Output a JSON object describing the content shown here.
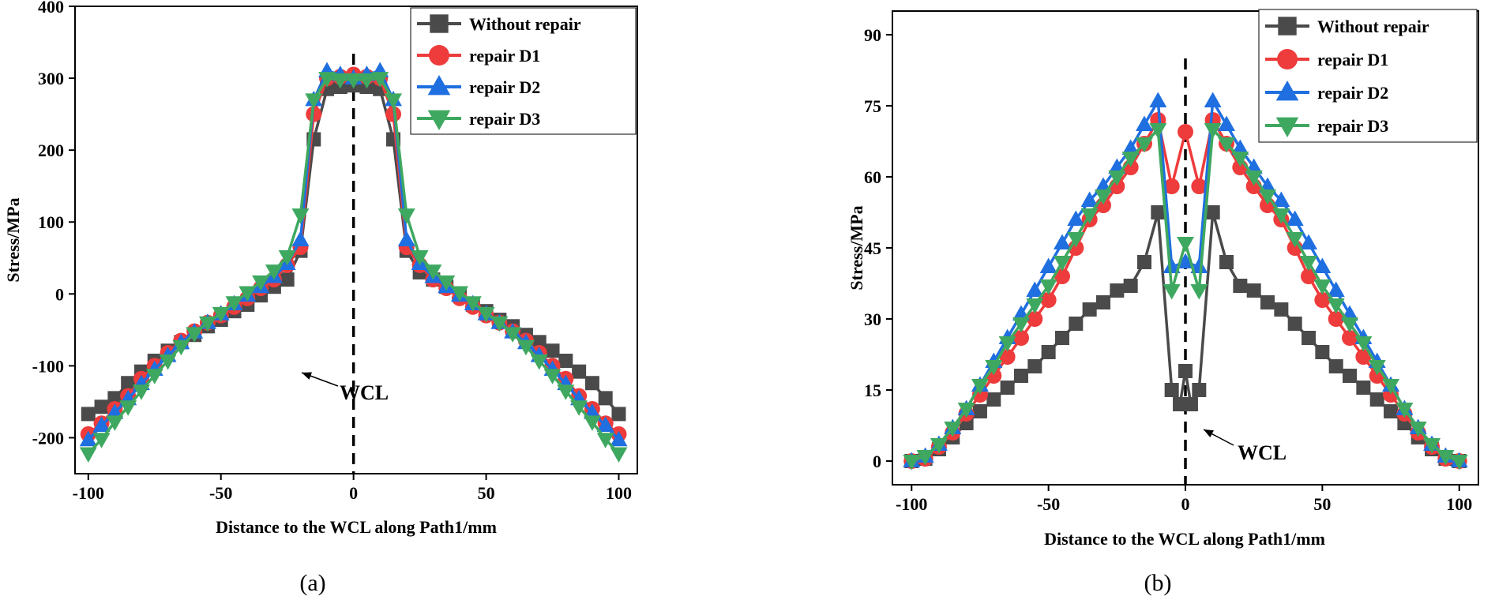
{
  "colors": {
    "without_repair": "#4a4a4a",
    "repair_d1": "#ee3b3b",
    "repair_d2": "#1f6fe0",
    "repair_d3": "#3fa860"
  },
  "chart_data": [
    {
      "type": "line",
      "panel_label": "(a)",
      "xlabel": "Distance to the WCL along Path1/mm",
      "ylabel": "Stress/MPa",
      "xlim": [
        -105,
        107
      ],
      "ylim": [
        -250,
        400
      ],
      "xticks": [
        -100,
        -50,
        0,
        50,
        100
      ],
      "yticks": [
        -200,
        -100,
        0,
        100,
        200,
        300,
        400
      ],
      "grid": false,
      "legend_position": "top-right",
      "annotation": {
        "text": "WCL",
        "x": 0,
        "y": -97
      },
      "series": [
        {
          "name": "Without repair",
          "marker": "square",
          "color_key": "without_repair",
          "x": [
            -100,
            -95,
            -90,
            -85,
            -80,
            -75,
            -70,
            -65,
            -60,
            -55,
            -50,
            -45,
            -40,
            -35,
            -30,
            -25,
            -20,
            -15,
            -10,
            -5,
            0,
            5,
            10,
            15,
            20,
            25,
            30,
            35,
            40,
            45,
            50,
            55,
            60,
            65,
            70,
            75,
            80,
            85,
            90,
            95,
            100
          ],
          "y": [
            -167,
            -157,
            -145,
            -124,
            -108,
            -93,
            -79,
            -67,
            -57,
            -45,
            -36,
            -24,
            -15,
            -2,
            10,
            20,
            60,
            215,
            285,
            288,
            290,
            288,
            285,
            215,
            60,
            30,
            20,
            10,
            -2,
            -15,
            -24,
            -36,
            -45,
            -57,
            -67,
            -79,
            -93,
            -108,
            -124,
            -145,
            -167
          ]
        },
        {
          "name": "repair D1",
          "marker": "circle",
          "color_key": "repair_d1",
          "x": [
            -100,
            -95,
            -90,
            -85,
            -80,
            -75,
            -70,
            -65,
            -60,
            -55,
            -50,
            -45,
            -40,
            -35,
            -30,
            -25,
            -20,
            -15,
            -10,
            -5,
            0,
            5,
            10,
            15,
            20,
            25,
            30,
            35,
            40,
            45,
            50,
            55,
            60,
            65,
            70,
            75,
            80,
            85,
            90,
            95,
            100
          ],
          "y": [
            -195,
            -180,
            -160,
            -142,
            -118,
            -100,
            -82,
            -65,
            -52,
            -40,
            -30,
            -18,
            -6,
            8,
            20,
            40,
            65,
            250,
            300,
            302,
            305,
            302,
            300,
            250,
            65,
            40,
            20,
            8,
            -6,
            -18,
            -30,
            -40,
            -52,
            -65,
            -82,
            -100,
            -118,
            -142,
            -160,
            -180,
            -195
          ]
        },
        {
          "name": "repair D2",
          "marker": "triangle-up",
          "color_key": "repair_d2",
          "x": [
            -100,
            -95,
            -90,
            -85,
            -80,
            -75,
            -70,
            -65,
            -60,
            -55,
            -50,
            -45,
            -40,
            -35,
            -30,
            -25,
            -20,
            -15,
            -10,
            -5,
            0,
            5,
            10,
            15,
            20,
            25,
            30,
            35,
            40,
            45,
            50,
            55,
            60,
            65,
            70,
            75,
            80,
            85,
            90,
            95,
            100
          ],
          "y": [
            -203,
            -183,
            -165,
            -146,
            -125,
            -105,
            -86,
            -68,
            -53,
            -40,
            -28,
            -14,
            -2,
            10,
            24,
            42,
            75,
            270,
            310,
            305,
            300,
            305,
            310,
            270,
            75,
            42,
            24,
            10,
            -2,
            -14,
            -28,
            -40,
            -53,
            -68,
            -86,
            -105,
            -125,
            -146,
            -165,
            -183,
            -203
          ]
        },
        {
          "name": "repair D3",
          "marker": "triangle-down",
          "color_key": "repair_d3",
          "x": [
            -100,
            -95,
            -90,
            -85,
            -80,
            -75,
            -70,
            -65,
            -60,
            -55,
            -50,
            -45,
            -40,
            -35,
            -30,
            -25,
            -20,
            -15,
            -10,
            -5,
            0,
            5,
            10,
            15,
            20,
            25,
            30,
            35,
            40,
            45,
            50,
            55,
            60,
            65,
            70,
            75,
            80,
            85,
            90,
            95,
            100
          ],
          "y": [
            -222,
            -202,
            -178,
            -157,
            -135,
            -113,
            -93,
            -73,
            -55,
            -40,
            -27,
            -12,
            2,
            17,
            32,
            52,
            110,
            270,
            300,
            298,
            298,
            298,
            300,
            270,
            110,
            52,
            32,
            17,
            2,
            -12,
            -27,
            -40,
            -55,
            -73,
            -93,
            -113,
            -135,
            -157,
            -178,
            -202,
            -222
          ]
        }
      ]
    },
    {
      "type": "line",
      "panel_label": "(b)",
      "xlabel": "Distance to the WCL along Path1/mm",
      "ylabel": "Stress/MPa",
      "xlim": [
        -107,
        107
      ],
      "ylim": [
        -5,
        95
      ],
      "xticks": [
        -100,
        -50,
        0,
        50,
        100
      ],
      "yticks": [
        0,
        15,
        30,
        45,
        60,
        75,
        90
      ],
      "grid": false,
      "legend_position": "top-right",
      "annotation": {
        "text": "WCL",
        "x": 0,
        "y": 3
      },
      "series": [
        {
          "name": "Without repair",
          "marker": "square",
          "color_key": "without_repair",
          "x": [
            -100,
            -95,
            -90,
            -85,
            -80,
            -75,
            -70,
            -65,
            -60,
            -55,
            -50,
            -45,
            -40,
            -35,
            -30,
            -25,
            -20,
            -15,
            -10,
            -5,
            -2,
            0,
            2,
            5,
            10,
            15,
            20,
            25,
            30,
            35,
            40,
            45,
            50,
            55,
            60,
            65,
            70,
            75,
            80,
            85,
            90,
            95,
            100
          ],
          "y": [
            0,
            0.5,
            2.5,
            5,
            8,
            10.5,
            13,
            15.5,
            18,
            20,
            23,
            26,
            29,
            32,
            33.5,
            36,
            37,
            42,
            52.5,
            15,
            12,
            19,
            12,
            15,
            52.5,
            42,
            37,
            36,
            33.5,
            32,
            29,
            26,
            23,
            20,
            18,
            15.5,
            13,
            10.5,
            8,
            5,
            2.5,
            0.5,
            0
          ]
        },
        {
          "name": "repair D1",
          "marker": "circle",
          "color_key": "repair_d1",
          "x": [
            -100,
            -95,
            -90,
            -85,
            -80,
            -75,
            -70,
            -65,
            -60,
            -55,
            -50,
            -45,
            -40,
            -35,
            -30,
            -25,
            -20,
            -15,
            -10,
            -5,
            0,
            5,
            10,
            15,
            20,
            25,
            30,
            35,
            40,
            45,
            50,
            55,
            60,
            65,
            70,
            75,
            80,
            85,
            90,
            95,
            100
          ],
          "y": [
            0,
            0.5,
            3,
            6,
            10,
            14,
            18,
            22,
            26,
            30,
            34,
            39,
            45,
            51,
            54,
            58,
            62,
            67,
            72,
            58,
            69.5,
            58,
            72,
            67,
            62,
            58,
            54,
            51,
            45,
            39,
            34,
            30,
            26,
            22,
            18,
            14,
            10,
            6,
            3,
            0.5,
            0
          ]
        },
        {
          "name": "repair D2",
          "marker": "triangle-up",
          "color_key": "repair_d2",
          "x": [
            -100,
            -95,
            -90,
            -85,
            -80,
            -75,
            -70,
            -65,
            -60,
            -55,
            -50,
            -45,
            -40,
            -35,
            -30,
            -25,
            -20,
            -15,
            -10,
            -5,
            0,
            5,
            10,
            15,
            20,
            25,
            30,
            35,
            40,
            45,
            50,
            55,
            60,
            65,
            70,
            75,
            80,
            85,
            90,
            95,
            100
          ],
          "y": [
            0,
            1,
            3.5,
            7,
            11,
            16,
            21,
            26,
            31,
            36,
            41,
            46,
            51,
            55,
            58,
            62,
            66,
            71,
            76,
            41,
            42,
            41,
            76,
            71,
            66,
            62,
            58,
            55,
            51,
            46,
            41,
            36,
            31,
            26,
            21,
            16,
            11,
            7,
            3.5,
            1,
            0
          ]
        },
        {
          "name": "repair D3",
          "marker": "triangle-down",
          "color_key": "repair_d3",
          "x": [
            -100,
            -95,
            -90,
            -85,
            -80,
            -75,
            -70,
            -65,
            -60,
            -55,
            -50,
            -45,
            -40,
            -35,
            -30,
            -25,
            -20,
            -15,
            -10,
            -5,
            0,
            5,
            10,
            15,
            20,
            25,
            30,
            35,
            40,
            45,
            50,
            55,
            60,
            65,
            70,
            75,
            80,
            85,
            90,
            95,
            100
          ],
          "y": [
            0,
            1,
            3.5,
            7,
            11,
            16,
            20,
            25,
            29,
            33,
            37,
            42,
            47,
            52,
            56,
            60,
            64,
            67,
            70,
            36,
            46,
            36,
            70,
            67,
            64,
            60,
            56,
            52,
            47,
            42,
            37,
            33,
            29,
            25,
            20,
            16,
            11,
            7,
            3.5,
            1,
            0
          ]
        }
      ]
    }
  ]
}
